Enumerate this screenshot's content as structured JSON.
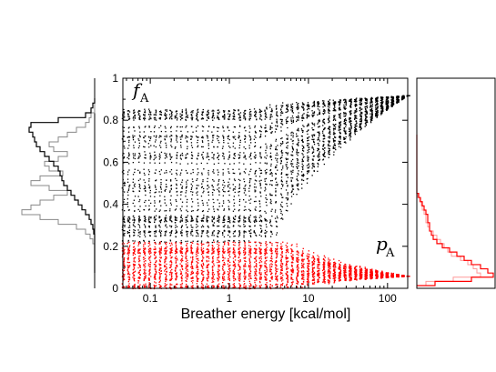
{
  "chart_data": {
    "type": "scatter",
    "title": "",
    "xlabel": "Breather energy [kcal/mol]",
    "ylabel": "",
    "xscale": "log",
    "xlim": [
      0.045,
      180
    ],
    "ylim": [
      0,
      1
    ],
    "x_ticks": [
      0.1,
      1,
      10,
      100
    ],
    "x_tick_labels": [
      "0.1",
      "1",
      "10",
      "100"
    ],
    "y_ticks": [
      0,
      0.2,
      0.4,
      0.6,
      0.8,
      1
    ],
    "y_tick_labels": [
      "0",
      "0.2",
      "0.4",
      "0.6",
      "0.8",
      "1"
    ],
    "grid": false,
    "legend": "none",
    "series": [
      {
        "color": "#000000",
        "symbol": "f_A",
        "band": [
          0.22,
          0.86
        ],
        "converges_to": 0.92,
        "onset_energy": 3
      },
      {
        "color": "#ff0000",
        "symbol": "p_A",
        "band": [
          0.0,
          0.22
        ],
        "converges_to": 0.06,
        "onset_energy": 5
      }
    ],
    "annotations": [
      {
        "text": "f",
        "subscript": "A"
      },
      {
        "text": "p",
        "subscript": "A"
      }
    ],
    "marginal_histograms": [
      {
        "side": "left",
        "colors": [
          "#000000",
          "#888888"
        ]
      },
      {
        "side": "right",
        "colors": [
          "#ff0000"
        ]
      }
    ]
  }
}
